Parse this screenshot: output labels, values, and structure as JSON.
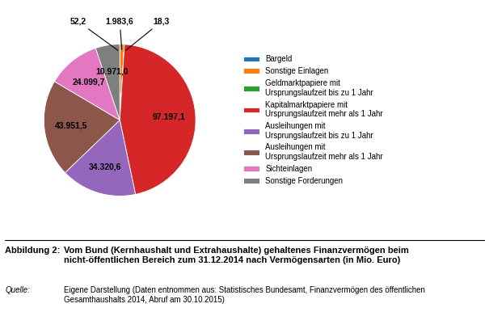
{
  "chart_data": {
    "type": "pie",
    "categories": [
      "Bargeld",
      "Sonstige Einlagen",
      "Geldmarktpapiere mit\nUrsprungslaufzeit bis zu 1 Jahr",
      "Kapitalmarktpapiere mit\nUrsprungslaufzeit mehr als 1 Jahr",
      "Ausleihungen mit\nUrsprungslaufzeit bis zu 1 Jahr",
      "Ausleihungen mit\nUrsprungslaufzeit mehr als 1 Jahr",
      "Sichteinlagen",
      "Sonstige Forderungen"
    ],
    "values": [
      52.2,
      1983.6,
      18.3,
      97197.1,
      34320.6,
      43951.5,
      24099.7,
      10971.0
    ],
    "value_labels": [
      "52,2",
      "1.983,6",
      "18,3",
      "97.197,1",
      "34.320,6",
      "43.951,5",
      "24.099,7",
      "10.971,0"
    ],
    "data_labels": true,
    "legend": "center left",
    "caption_label": "Abbildung 2:",
    "caption": "Vom Bund (Kernhaushalt und Extrahaushalte) gehaltenes Finanzvermögen beim\nnicht-öffentlichen Bereich zum 31.12.2014 nach Vermögensarten (in Mio. Euro)",
    "source_label": "Quelle:",
    "source": "Eigene Darstellung (Daten entnommen aus: Statistisches Bundesamt, Finanzvermögen des öffentlichen\nGesamthaushalts 2014, Abruf am 30.10.2015)"
  }
}
